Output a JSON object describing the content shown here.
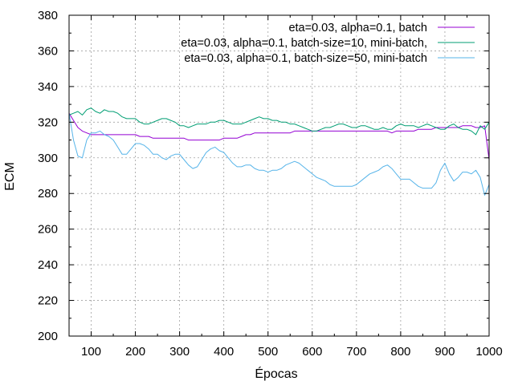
{
  "chart_data": {
    "type": "line",
    "xlabel": "Épocas",
    "ylabel": "ECM",
    "xlim": [
      50,
      1000
    ],
    "ylim": [
      200,
      380
    ],
    "xticks": [
      100,
      200,
      300,
      400,
      500,
      600,
      700,
      800,
      900,
      1000
    ],
    "yticks": [
      200,
      220,
      240,
      260,
      280,
      300,
      320,
      340,
      360,
      380
    ],
    "grid": true,
    "legend_position": "top-right",
    "series": [
      {
        "name": "eta=0.03, alpha=0.1, batch",
        "color": "#9400d3",
        "x": [
          50,
          60,
          70,
          80,
          90,
          100,
          110,
          120,
          130,
          140,
          150,
          160,
          170,
          180,
          190,
          200,
          210,
          220,
          230,
          240,
          250,
          260,
          270,
          280,
          290,
          300,
          310,
          320,
          330,
          340,
          350,
          360,
          370,
          380,
          390,
          400,
          410,
          420,
          430,
          440,
          450,
          460,
          470,
          480,
          490,
          500,
          510,
          520,
          530,
          540,
          550,
          560,
          570,
          580,
          590,
          600,
          610,
          620,
          630,
          640,
          650,
          660,
          670,
          680,
          690,
          700,
          710,
          720,
          730,
          740,
          750,
          760,
          770,
          780,
          790,
          800,
          810,
          820,
          830,
          840,
          850,
          860,
          870,
          880,
          890,
          900,
          910,
          920,
          930,
          940,
          950,
          960,
          970,
          980,
          990,
          1000
        ],
        "values": [
          325,
          321,
          317,
          315,
          314,
          313,
          313,
          313,
          313,
          313,
          313,
          313,
          313,
          313,
          313,
          313,
          312,
          312,
          312,
          311,
          311,
          311,
          311,
          311,
          311,
          311,
          311,
          310,
          310,
          310,
          310,
          310,
          310,
          310,
          310,
          311,
          311,
          311,
          311,
          312,
          313,
          313,
          314,
          314,
          314,
          314,
          314,
          314,
          314,
          314,
          314,
          315,
          315,
          315,
          315,
          315,
          315,
          315,
          315,
          315,
          315,
          315,
          315,
          315,
          315,
          315,
          315,
          315,
          315,
          315,
          315,
          315,
          315,
          314,
          315,
          315,
          315,
          315,
          315,
          316,
          316,
          316,
          316,
          317,
          317,
          317,
          317,
          317,
          317,
          318,
          318,
          318,
          317,
          317,
          318,
          299
        ]
      },
      {
        "name": "eta=0.03, alpha=0.1, batch-size=10, mini-batch,",
        "color": "#009e73",
        "x": [
          50,
          60,
          70,
          80,
          90,
          100,
          110,
          120,
          130,
          140,
          150,
          160,
          170,
          180,
          190,
          200,
          210,
          220,
          230,
          240,
          250,
          260,
          270,
          280,
          290,
          300,
          310,
          320,
          330,
          340,
          350,
          360,
          370,
          380,
          390,
          400,
          410,
          420,
          430,
          440,
          450,
          460,
          470,
          480,
          490,
          500,
          510,
          520,
          530,
          540,
          550,
          560,
          570,
          580,
          590,
          600,
          610,
          620,
          630,
          640,
          650,
          660,
          670,
          680,
          690,
          700,
          710,
          720,
          730,
          740,
          750,
          760,
          770,
          780,
          790,
          800,
          810,
          820,
          830,
          840,
          850,
          860,
          870,
          880,
          890,
          900,
          910,
          920,
          930,
          940,
          950,
          960,
          970,
          980,
          990,
          1000
        ],
        "values": [
          324,
          325,
          326,
          324,
          327,
          328,
          326,
          325,
          327,
          326,
          326,
          325,
          323,
          322,
          322,
          322,
          320,
          319,
          319,
          320,
          321,
          322,
          322,
          321,
          320,
          318,
          318,
          317,
          318,
          319,
          319,
          319,
          320,
          320,
          321,
          321,
          320,
          319,
          319,
          319,
          320,
          321,
          322,
          323,
          322,
          322,
          321,
          321,
          320,
          320,
          319,
          319,
          318,
          317,
          316,
          315,
          315,
          316,
          317,
          317,
          318,
          319,
          319,
          318,
          317,
          317,
          318,
          318,
          317,
          316,
          316,
          317,
          316,
          316,
          318,
          319,
          318,
          318,
          318,
          317,
          318,
          319,
          318,
          317,
          316,
          316,
          318,
          319,
          317,
          316,
          316,
          315,
          313,
          318,
          316,
          320
        ]
      },
      {
        "name": "eta=0.03, alpha=0.1, batch-size=50, mini-batch",
        "color": "#56b4e9",
        "x": [
          50,
          60,
          70,
          80,
          90,
          100,
          110,
          120,
          130,
          140,
          150,
          160,
          170,
          180,
          190,
          200,
          210,
          220,
          230,
          240,
          250,
          260,
          270,
          280,
          290,
          300,
          310,
          320,
          330,
          340,
          350,
          360,
          370,
          380,
          390,
          400,
          410,
          420,
          430,
          440,
          450,
          460,
          470,
          480,
          490,
          500,
          510,
          520,
          530,
          540,
          550,
          560,
          570,
          580,
          590,
          600,
          610,
          620,
          630,
          640,
          650,
          660,
          670,
          680,
          690,
          700,
          710,
          720,
          730,
          740,
          750,
          760,
          770,
          780,
          790,
          800,
          810,
          820,
          830,
          840,
          850,
          860,
          870,
          880,
          890,
          900,
          910,
          920,
          930,
          940,
          950,
          960,
          970,
          980,
          990,
          1000
        ],
        "values": [
          325,
          310,
          301,
          300,
          310,
          314,
          314,
          315,
          313,
          312,
          310,
          306,
          302,
          302,
          305,
          308,
          308,
          307,
          305,
          302,
          302,
          300,
          299,
          301,
          302,
          302,
          299,
          296,
          294,
          295,
          299,
          303,
          305,
          306,
          304,
          303,
          300,
          297,
          295,
          295,
          296,
          296,
          294,
          293,
          293,
          292,
          293,
          293,
          294,
          296,
          297,
          298,
          297,
          295,
          293,
          291,
          289,
          288,
          287,
          285,
          284,
          284,
          284,
          284,
          284,
          285,
          287,
          289,
          291,
          292,
          293,
          295,
          296,
          294,
          291,
          288,
          288,
          288,
          286,
          284,
          283,
          283,
          283,
          286,
          293,
          297,
          291,
          287,
          289,
          292,
          292,
          291,
          293,
          289,
          279,
          285
        ]
      }
    ]
  }
}
